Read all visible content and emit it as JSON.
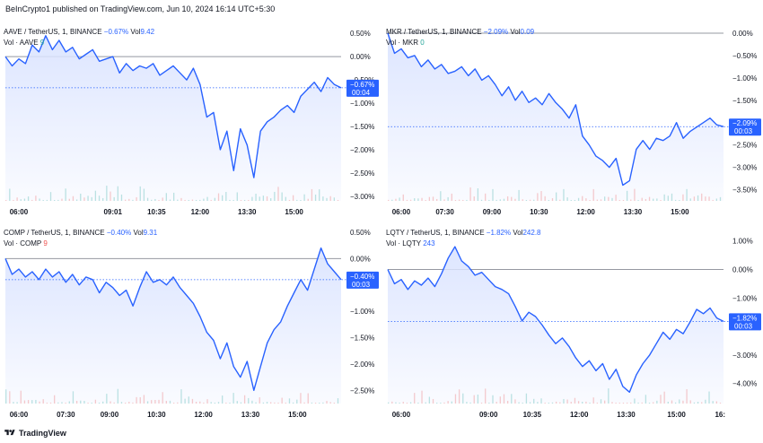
{
  "header": {
    "publish_text": "BeInCrypto1 published on TradingView.com, Jun 10, 2024 16:14 UTC+5:30"
  },
  "footer": {
    "brand": "TradingView"
  },
  "colors": {
    "line": "#2962ff",
    "fill": "#dbe4ff",
    "zero_line": "#9598a1",
    "up": "#26a69a",
    "down": "#ef5350"
  },
  "chart_data": [
    {
      "type": "area",
      "symbol": "AAVE / TetherUS, 1, BINANCE",
      "change": "−0.67%",
      "vol_label": "Vol",
      "vol_value": "9.42",
      "vol_line_label": "Vol · AAVE",
      "vol_line_value": "9",
      "vol_color": "up",
      "badge_value": "−0.67%",
      "badge_time": "00:04",
      "last_value": -0.67,
      "y_ticks": [
        "0.50%",
        "0.00%",
        "−0.50%",
        "−1.00%",
        "−1.50%",
        "−2.00%",
        "−2.50%",
        "−3.00%"
      ],
      "y_tick_values": [
        0.5,
        0.0,
        -0.5,
        -1.0,
        -1.5,
        -2.0,
        -2.5,
        -3.0
      ],
      "ylim": [
        0.6,
        -3.1
      ],
      "x_ticks": [
        "06:00",
        "09:01",
        "10:35",
        "12:00",
        "13:30",
        "15:00"
      ],
      "x_tick_positions": [
        0.04,
        0.32,
        0.45,
        0.58,
        0.72,
        0.86
      ],
      "xlim": [
        0,
        1
      ],
      "x": [
        0.0,
        0.02,
        0.04,
        0.06,
        0.08,
        0.1,
        0.12,
        0.14,
        0.16,
        0.18,
        0.2,
        0.22,
        0.24,
        0.26,
        0.28,
        0.3,
        0.32,
        0.34,
        0.36,
        0.38,
        0.4,
        0.42,
        0.44,
        0.46,
        0.48,
        0.5,
        0.52,
        0.54,
        0.56,
        0.58,
        0.6,
        0.62,
        0.64,
        0.66,
        0.68,
        0.7,
        0.72,
        0.74,
        0.76,
        0.78,
        0.8,
        0.82,
        0.84,
        0.86,
        0.88,
        0.9,
        0.92,
        0.94,
        0.96,
        0.98,
        1.0
      ],
      "values": [
        0.0,
        -0.2,
        -0.05,
        -0.15,
        0.25,
        0.1,
        0.45,
        0.15,
        0.35,
        0.1,
        0.2,
        -0.05,
        0.05,
        0.15,
        -0.1,
        -0.05,
        0.0,
        -0.35,
        -0.15,
        -0.3,
        -0.2,
        -0.25,
        -0.15,
        -0.4,
        -0.3,
        -0.2,
        -0.35,
        -0.5,
        -0.25,
        -0.6,
        -1.3,
        -1.2,
        -2.0,
        -1.6,
        -2.45,
        -1.55,
        -1.9,
        -2.6,
        -1.6,
        -1.4,
        -1.3,
        -1.15,
        -1.05,
        -1.2,
        -0.85,
        -0.7,
        -0.55,
        -0.75,
        -0.45,
        -0.6,
        -0.67
      ]
    },
    {
      "type": "area",
      "symbol": "MKR / TetherUS, 1, BINANCE",
      "change": "−2.09%",
      "vol_label": "Vol",
      "vol_value": "0.09",
      "vol_line_label": "Vol · MKR",
      "vol_line_value": "0",
      "vol_color": "up",
      "badge_value": "−2.09%",
      "badge_time": "00:03",
      "last_value": -2.09,
      "y_ticks": [
        "0.00%",
        "−0.50%",
        "−1.00%",
        "−1.50%",
        "−2.00%",
        "−2.50%",
        "−3.00%",
        "−3.50%"
      ],
      "y_tick_values": [
        0.0,
        -0.5,
        -1.0,
        -1.5,
        -2.0,
        -2.5,
        -3.0,
        -3.5
      ],
      "ylim": [
        0.1,
        -3.75
      ],
      "x_ticks": [
        "06:00",
        "07:30",
        "09:00",
        "10:30",
        "12:00",
        "13:30",
        "15:00"
      ],
      "x_tick_positions": [
        0.04,
        0.17,
        0.31,
        0.45,
        0.59,
        0.73,
        0.87
      ],
      "xlim": [
        0,
        1
      ],
      "x": [
        0.0,
        0.02,
        0.04,
        0.06,
        0.08,
        0.1,
        0.12,
        0.14,
        0.16,
        0.18,
        0.2,
        0.22,
        0.24,
        0.26,
        0.28,
        0.3,
        0.32,
        0.34,
        0.36,
        0.38,
        0.4,
        0.42,
        0.44,
        0.46,
        0.48,
        0.5,
        0.52,
        0.54,
        0.56,
        0.58,
        0.6,
        0.62,
        0.64,
        0.66,
        0.68,
        0.7,
        0.72,
        0.74,
        0.76,
        0.78,
        0.8,
        0.82,
        0.84,
        0.86,
        0.88,
        0.9,
        0.92,
        0.94,
        0.96,
        0.98,
        1.0
      ],
      "values": [
        0.0,
        -0.45,
        -0.35,
        -0.55,
        -0.5,
        -0.75,
        -0.6,
        -0.8,
        -0.7,
        -0.9,
        -0.85,
        -0.75,
        -0.95,
        -0.8,
        -1.05,
        -0.95,
        -1.15,
        -1.4,
        -1.2,
        -1.5,
        -1.3,
        -1.55,
        -1.45,
        -1.6,
        -1.35,
        -1.55,
        -1.7,
        -1.9,
        -1.6,
        -2.3,
        -2.5,
        -2.75,
        -2.85,
        -3.0,
        -2.8,
        -3.4,
        -3.3,
        -2.6,
        -2.4,
        -2.6,
        -2.35,
        -2.4,
        -2.3,
        -2.0,
        -2.35,
        -2.2,
        -2.1,
        -2.0,
        -1.9,
        -2.05,
        -2.09
      ]
    },
    {
      "type": "area",
      "symbol": "COMP / TetherUS, 1, BINANCE",
      "change": "−0.40%",
      "vol_label": "Vol",
      "vol_value": "9.31",
      "vol_line_label": "Vol · COMP",
      "vol_line_value": "9",
      "vol_color": "down",
      "badge_value": "−0.40%",
      "badge_time": "00:03",
      "last_value": -0.4,
      "y_ticks": [
        "0.50%",
        "0.00%",
        "−0.50%",
        "−1.00%",
        "−1.50%",
        "−2.00%",
        "−2.50%"
      ],
      "y_tick_values": [
        0.5,
        0.0,
        -0.5,
        -1.0,
        -1.5,
        -2.0,
        -2.5
      ],
      "ylim": [
        0.55,
        -2.75
      ],
      "x_ticks": [
        "06:00",
        "07:30",
        "09:00",
        "10:30",
        "12:00",
        "13:30",
        "15:00"
      ],
      "x_tick_positions": [
        0.04,
        0.18,
        0.31,
        0.45,
        0.59,
        0.73,
        0.87
      ],
      "xlim": [
        0,
        1
      ],
      "x": [
        0.0,
        0.02,
        0.04,
        0.06,
        0.08,
        0.1,
        0.12,
        0.14,
        0.16,
        0.18,
        0.2,
        0.22,
        0.24,
        0.26,
        0.28,
        0.3,
        0.32,
        0.34,
        0.36,
        0.38,
        0.4,
        0.42,
        0.44,
        0.46,
        0.48,
        0.5,
        0.52,
        0.54,
        0.56,
        0.58,
        0.6,
        0.62,
        0.64,
        0.66,
        0.68,
        0.7,
        0.72,
        0.74,
        0.76,
        0.78,
        0.8,
        0.82,
        0.84,
        0.86,
        0.88,
        0.9,
        0.92,
        0.94,
        0.96,
        0.98,
        1.0
      ],
      "values": [
        0.0,
        -0.3,
        -0.2,
        -0.35,
        -0.25,
        -0.4,
        -0.2,
        -0.35,
        -0.25,
        -0.45,
        -0.3,
        -0.5,
        -0.35,
        -0.4,
        -0.65,
        -0.45,
        -0.55,
        -0.7,
        -0.6,
        -0.9,
        -0.55,
        -0.25,
        -0.45,
        -0.4,
        -0.5,
        -0.35,
        -0.55,
        -0.7,
        -0.85,
        -1.1,
        -1.4,
        -1.55,
        -1.9,
        -1.6,
        -2.05,
        -2.25,
        -1.95,
        -2.5,
        -2.05,
        -1.6,
        -1.35,
        -1.2,
        -0.9,
        -0.65,
        -0.4,
        -0.6,
        -0.2,
        0.2,
        -0.1,
        -0.25,
        -0.4
      ]
    },
    {
      "type": "area",
      "symbol": "LQTY / TetherUS, 1, BINANCE",
      "change": "−1.82%",
      "vol_label": "Vol",
      "vol_value": "242.8",
      "vol_line_label": "Vol · LQTY",
      "vol_line_value": "243",
      "vol_color": "blue",
      "badge_value": "−1.82%",
      "badge_time": "00:03",
      "last_value": -1.82,
      "y_ticks": [
        "1.00%",
        "0.00%",
        "−1.00%",
        "−2.00%",
        "−3.00%",
        "−4.00%"
      ],
      "y_tick_values": [
        1.0,
        0.0,
        -1.0,
        -2.0,
        -3.0,
        -4.0
      ],
      "ylim": [
        1.4,
        -4.7
      ],
      "x_ticks": [
        "06:00",
        "09:00",
        "10:35",
        "12:00",
        "13:30",
        "15:00",
        "16:"
      ],
      "x_tick_positions": [
        0.04,
        0.3,
        0.43,
        0.57,
        0.71,
        0.86,
        0.99
      ],
      "xlim": [
        0,
        1
      ],
      "x": [
        0.0,
        0.02,
        0.04,
        0.06,
        0.08,
        0.1,
        0.12,
        0.14,
        0.16,
        0.18,
        0.2,
        0.22,
        0.24,
        0.26,
        0.28,
        0.3,
        0.32,
        0.34,
        0.36,
        0.38,
        0.4,
        0.42,
        0.44,
        0.46,
        0.48,
        0.5,
        0.52,
        0.54,
        0.56,
        0.58,
        0.6,
        0.62,
        0.64,
        0.66,
        0.68,
        0.7,
        0.72,
        0.74,
        0.76,
        0.78,
        0.8,
        0.82,
        0.84,
        0.86,
        0.88,
        0.9,
        0.92,
        0.94,
        0.96,
        0.98,
        1.0
      ],
      "values": [
        0.0,
        -0.5,
        -0.35,
        -0.7,
        -0.4,
        -0.55,
        -0.3,
        -0.6,
        -0.15,
        0.4,
        0.8,
        0.3,
        0.1,
        -0.2,
        -0.1,
        -0.35,
        -0.6,
        -0.7,
        -0.85,
        -1.3,
        -1.8,
        -1.5,
        -1.65,
        -1.95,
        -2.3,
        -2.6,
        -2.4,
        -2.7,
        -3.1,
        -3.4,
        -3.2,
        -3.55,
        -3.3,
        -3.85,
        -3.5,
        -4.1,
        -4.3,
        -3.7,
        -3.3,
        -3.0,
        -2.6,
        -2.2,
        -2.45,
        -2.1,
        -2.25,
        -1.85,
        -1.4,
        -1.55,
        -1.35,
        -1.7,
        -1.82
      ]
    }
  ]
}
